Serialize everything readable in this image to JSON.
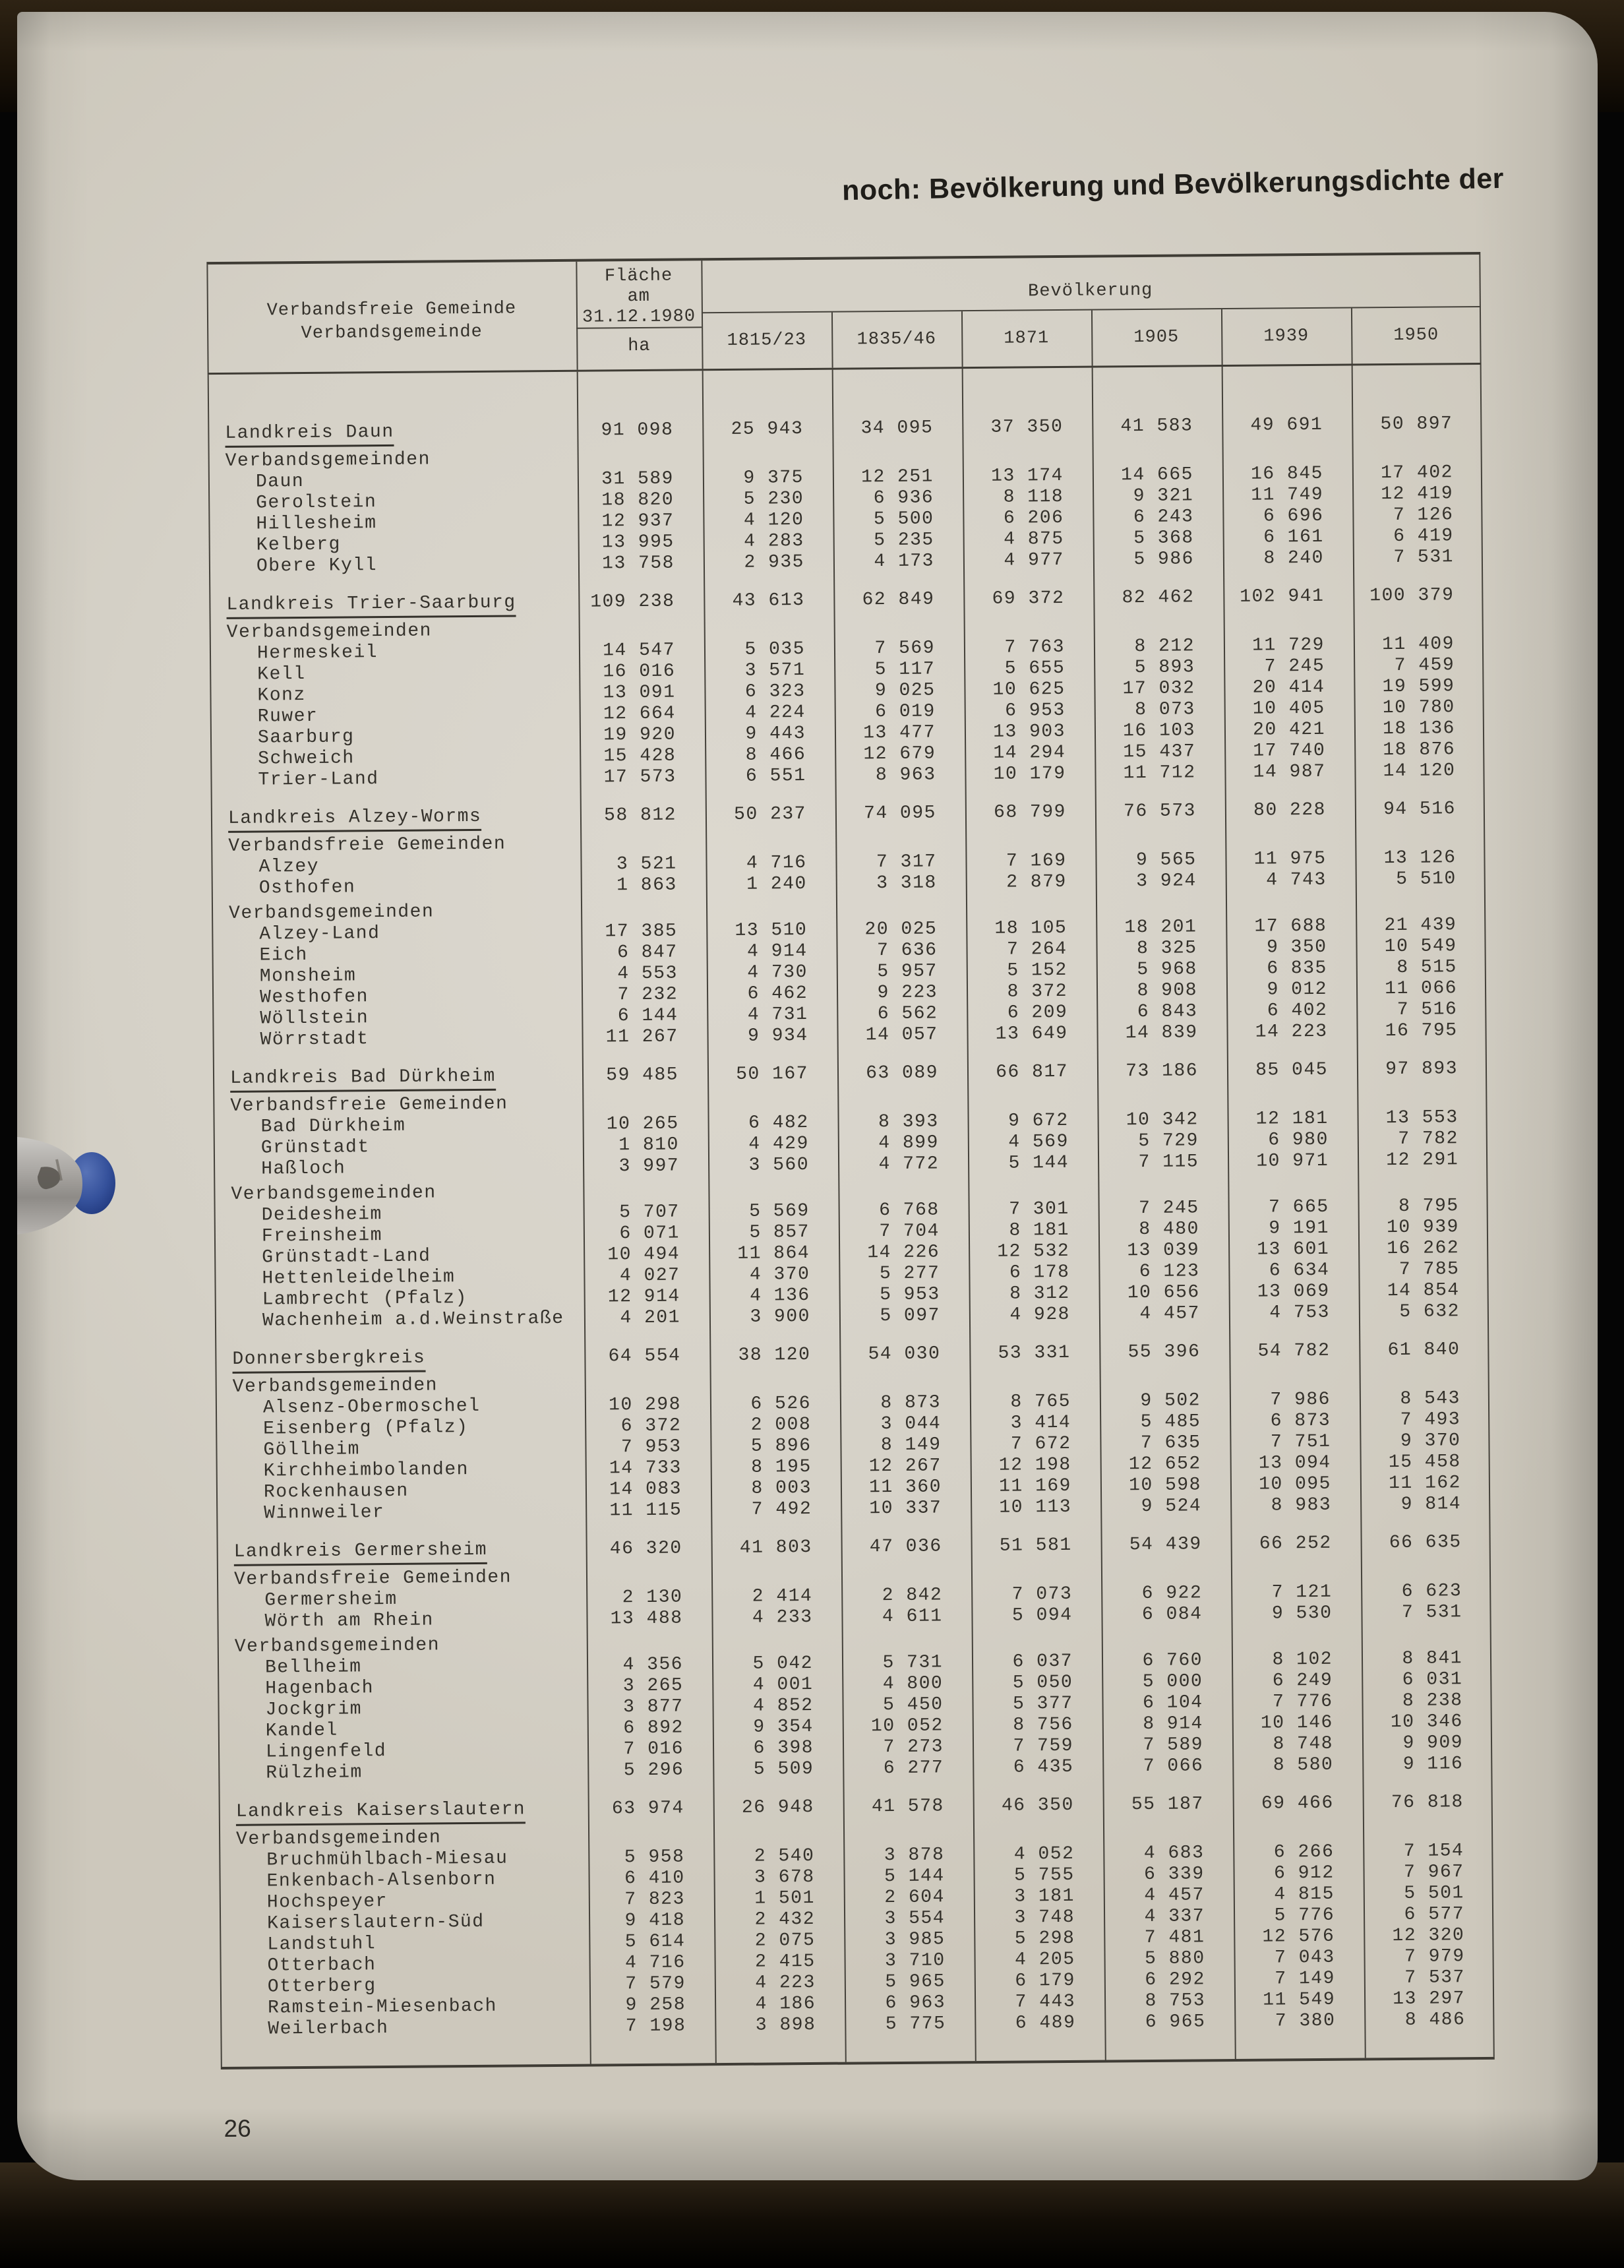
{
  "page": {
    "title": "noch: Bevölkerung und Bevölkerungsdichte der",
    "page_number": "26"
  },
  "colors": {
    "page_bg": "#d7d3c9",
    "ink": "#34312b",
    "rule": "#45423b",
    "pen_silver": "#a8a5a1",
    "pen_blue": "#35519b"
  },
  "table": {
    "header": {
      "col1_line1": "Verbandsfreie Gemeinde",
      "col1_line2": "Verbandsgemeinde",
      "area_line1": "Fläche",
      "area_line2": "am",
      "area_line3": "31.12.1980",
      "area_unit": "ha",
      "population": "Bevölkerung",
      "years": [
        "1815/23",
        "1835/46",
        "1871",
        "1905",
        "1939",
        "1950"
      ]
    },
    "groups": [
      {
        "title": "Landkreis Daun",
        "values": [
          "91 098",
          "25 943",
          "34 095",
          "37 350",
          "41 583",
          "49 691",
          "50 897"
        ],
        "sections": [
          {
            "label": "Verbandsgemeinden",
            "rows": [
              {
                "name": "Daun",
                "values": [
                  "31 589",
                  "9 375",
                  "12 251",
                  "13 174",
                  "14 665",
                  "16 845",
                  "17 402"
                ]
              },
              {
                "name": "Gerolstein",
                "values": [
                  "18 820",
                  "5 230",
                  "6 936",
                  "8 118",
                  "9 321",
                  "11 749",
                  "12 419"
                ]
              },
              {
                "name": "Hillesheim",
                "values": [
                  "12 937",
                  "4 120",
                  "5 500",
                  "6 206",
                  "6 243",
                  "6 696",
                  "7 126"
                ]
              },
              {
                "name": "Kelberg",
                "values": [
                  "13 995",
                  "4 283",
                  "5 235",
                  "4 875",
                  "5 368",
                  "6 161",
                  "6 419"
                ]
              },
              {
                "name": "Obere Kyll",
                "values": [
                  "13 758",
                  "2 935",
                  "4 173",
                  "4 977",
                  "5 986",
                  "8 240",
                  "7 531"
                ]
              }
            ]
          }
        ]
      },
      {
        "title": "Landkreis Trier-Saarburg",
        "values": [
          "109 238",
          "43 613",
          "62 849",
          "69 372",
          "82 462",
          "102 941",
          "100 379"
        ],
        "sections": [
          {
            "label": "Verbandsgemeinden",
            "rows": [
              {
                "name": "Hermeskeil",
                "values": [
                  "14 547",
                  "5 035",
                  "7 569",
                  "7 763",
                  "8 212",
                  "11 729",
                  "11 409"
                ]
              },
              {
                "name": "Kell",
                "values": [
                  "16 016",
                  "3 571",
                  "5 117",
                  "5 655",
                  "5 893",
                  "7 245",
                  "7 459"
                ]
              },
              {
                "name": "Konz",
                "values": [
                  "13 091",
                  "6 323",
                  "9 025",
                  "10 625",
                  "17 032",
                  "20 414",
                  "19 599"
                ]
              },
              {
                "name": "Ruwer",
                "values": [
                  "12 664",
                  "4 224",
                  "6 019",
                  "6 953",
                  "8 073",
                  "10 405",
                  "10 780"
                ]
              },
              {
                "name": "Saarburg",
                "values": [
                  "19 920",
                  "9 443",
                  "13 477",
                  "13 903",
                  "16 103",
                  "20 421",
                  "18 136"
                ]
              },
              {
                "name": "Schweich",
                "values": [
                  "15 428",
                  "8 466",
                  "12 679",
                  "14 294",
                  "15 437",
                  "17 740",
                  "18 876"
                ]
              },
              {
                "name": "Trier-Land",
                "values": [
                  "17 573",
                  "6 551",
                  "8 963",
                  "10 179",
                  "11 712",
                  "14 987",
                  "14 120"
                ]
              }
            ]
          }
        ]
      },
      {
        "title": "Landkreis Alzey-Worms",
        "values": [
          "58 812",
          "50 237",
          "74 095",
          "68 799",
          "76 573",
          "80 228",
          "94 516"
        ],
        "sections": [
          {
            "label": "Verbandsfreie Gemeinden",
            "rows": [
              {
                "name": "Alzey",
                "values": [
                  "3 521",
                  "4 716",
                  "7 317",
                  "7 169",
                  "9 565",
                  "11 975",
                  "13 126"
                ]
              },
              {
                "name": "Osthofen",
                "values": [
                  "1 863",
                  "1 240",
                  "3 318",
                  "2 879",
                  "3 924",
                  "4 743",
                  "5 510"
                ]
              }
            ]
          },
          {
            "label": "Verbandsgemeinden",
            "rows": [
              {
                "name": "Alzey-Land",
                "values": [
                  "17 385",
                  "13 510",
                  "20 025",
                  "18 105",
                  "18 201",
                  "17 688",
                  "21 439"
                ]
              },
              {
                "name": "Eich",
                "values": [
                  "6 847",
                  "4 914",
                  "7 636",
                  "7 264",
                  "8 325",
                  "9 350",
                  "10 549"
                ]
              },
              {
                "name": "Monsheim",
                "values": [
                  "4 553",
                  "4 730",
                  "5 957",
                  "5 152",
                  "5 968",
                  "6 835",
                  "8 515"
                ]
              },
              {
                "name": "Westhofen",
                "values": [
                  "7 232",
                  "6 462",
                  "9 223",
                  "8 372",
                  "8 908",
                  "9 012",
                  "11 066"
                ]
              },
              {
                "name": "Wöllstein",
                "values": [
                  "6 144",
                  "4 731",
                  "6 562",
                  "6 209",
                  "6 843",
                  "6 402",
                  "7 516"
                ]
              },
              {
                "name": "Wörrstadt",
                "values": [
                  "11 267",
                  "9 934",
                  "14 057",
                  "13 649",
                  "14 839",
                  "14 223",
                  "16 795"
                ]
              }
            ]
          }
        ]
      },
      {
        "title": "Landkreis Bad Dürkheim",
        "values": [
          "59 485",
          "50 167",
          "63 089",
          "66 817",
          "73 186",
          "85 045",
          "97 893"
        ],
        "sections": [
          {
            "label": "Verbandsfreie Gemeinden",
            "rows": [
              {
                "name": "Bad Dürkheim",
                "values": [
                  "10 265",
                  "6 482",
                  "8 393",
                  "9 672",
                  "10 342",
                  "12 181",
                  "13 553"
                ]
              },
              {
                "name": "Grünstadt",
                "values": [
                  "1 810",
                  "4 429",
                  "4 899",
                  "4 569",
                  "5 729",
                  "6 980",
                  "7 782"
                ]
              },
              {
                "name": "Haßloch",
                "values": [
                  "3 997",
                  "3 560",
                  "4 772",
                  "5 144",
                  "7 115",
                  "10 971",
                  "12 291"
                ]
              }
            ]
          },
          {
            "label": "Verbandsgemeinden",
            "rows": [
              {
                "name": "Deidesheim",
                "values": [
                  "5 707",
                  "5 569",
                  "6 768",
                  "7 301",
                  "7 245",
                  "7 665",
                  "8 795"
                ]
              },
              {
                "name": "Freinsheim",
                "values": [
                  "6 071",
                  "5 857",
                  "7 704",
                  "8 181",
                  "8 480",
                  "9 191",
                  "10 939"
                ]
              },
              {
                "name": "Grünstadt-Land",
                "values": [
                  "10 494",
                  "11 864",
                  "14 226",
                  "12 532",
                  "13 039",
                  "13 601",
                  "16 262"
                ]
              },
              {
                "name": "Hettenleidelheim",
                "values": [
                  "4 027",
                  "4 370",
                  "5 277",
                  "6 178",
                  "6 123",
                  "6 634",
                  "7 785"
                ]
              },
              {
                "name": "Lambrecht (Pfalz)",
                "values": [
                  "12 914",
                  "4 136",
                  "5 953",
                  "8 312",
                  "10 656",
                  "13 069",
                  "14 854"
                ]
              },
              {
                "name": "Wachenheim a.d.Weinstraße",
                "values": [
                  "4 201",
                  "3 900",
                  "5 097",
                  "4 928",
                  "4 457",
                  "4 753",
                  "5 632"
                ]
              }
            ]
          }
        ]
      },
      {
        "title": "Donnersbergkreis",
        "values": [
          "64 554",
          "38 120",
          "54 030",
          "53 331",
          "55 396",
          "54 782",
          "61 840"
        ],
        "sections": [
          {
            "label": "Verbandsgemeinden",
            "rows": [
              {
                "name": "Alsenz-Obermoschel",
                "values": [
                  "10 298",
                  "6 526",
                  "8 873",
                  "8 765",
                  "9 502",
                  "7 986",
                  "8 543"
                ]
              },
              {
                "name": "Eisenberg (Pfalz)",
                "values": [
                  "6 372",
                  "2 008",
                  "3 044",
                  "3 414",
                  "5 485",
                  "6 873",
                  "7 493"
                ]
              },
              {
                "name": "Göllheim",
                "values": [
                  "7 953",
                  "5 896",
                  "8 149",
                  "7 672",
                  "7 635",
                  "7 751",
                  "9 370"
                ]
              },
              {
                "name": "Kirchheimbolanden",
                "values": [
                  "14 733",
                  "8 195",
                  "12 267",
                  "12 198",
                  "12 652",
                  "13 094",
                  "15 458"
                ]
              },
              {
                "name": "Rockenhausen",
                "values": [
                  "14 083",
                  "8 003",
                  "11 360",
                  "11 169",
                  "10 598",
                  "10 095",
                  "11 162"
                ]
              },
              {
                "name": "Winnweiler",
                "values": [
                  "11 115",
                  "7 492",
                  "10 337",
                  "10 113",
                  "9 524",
                  "8 983",
                  "9 814"
                ]
              }
            ]
          }
        ]
      },
      {
        "title": "Landkreis Germersheim",
        "values": [
          "46 320",
          "41 803",
          "47 036",
          "51 581",
          "54 439",
          "66 252",
          "66 635"
        ],
        "sections": [
          {
            "label": "Verbandsfreie Gemeinden",
            "rows": [
              {
                "name": "Germersheim",
                "values": [
                  "2 130",
                  "2 414",
                  "2 842",
                  "7 073",
                  "6 922",
                  "7 121",
                  "6 623"
                ]
              },
              {
                "name": "Wörth am Rhein",
                "values": [
                  "13 488",
                  "4 233",
                  "4 611",
                  "5 094",
                  "6 084",
                  "9 530",
                  "7 531"
                ]
              }
            ]
          },
          {
            "label": "Verbandsgemeinden",
            "rows": [
              {
                "name": "Bellheim",
                "values": [
                  "4 356",
                  "5 042",
                  "5 731",
                  "6 037",
                  "6 760",
                  "8 102",
                  "8 841"
                ]
              },
              {
                "name": "Hagenbach",
                "values": [
                  "3 265",
                  "4 001",
                  "4 800",
                  "5 050",
                  "5 000",
                  "6 249",
                  "6 031"
                ]
              },
              {
                "name": "Jockgrim",
                "values": [
                  "3 877",
                  "4 852",
                  "5 450",
                  "5 377",
                  "6 104",
                  "7 776",
                  "8 238"
                ]
              },
              {
                "name": "Kandel",
                "values": [
                  "6 892",
                  "9 354",
                  "10 052",
                  "8 756",
                  "8 914",
                  "10 146",
                  "10 346"
                ]
              },
              {
                "name": "Lingenfeld",
                "values": [
                  "7 016",
                  "6 398",
                  "7 273",
                  "7 759",
                  "7 589",
                  "8 748",
                  "9 909"
                ]
              },
              {
                "name": "Rülzheim",
                "values": [
                  "5 296",
                  "5 509",
                  "6 277",
                  "6 435",
                  "7 066",
                  "8 580",
                  "9 116"
                ]
              }
            ]
          }
        ]
      },
      {
        "title": "Landkreis Kaiserslautern",
        "values": [
          "63 974",
          "26 948",
          "41 578",
          "46 350",
          "55 187",
          "69 466",
          "76 818"
        ],
        "sections": [
          {
            "label": "Verbandsgemeinden",
            "rows": [
              {
                "name": "Bruchmühlbach-Miesau",
                "values": [
                  "5 958",
                  "2 540",
                  "3 878",
                  "4 052",
                  "4 683",
                  "6 266",
                  "7 154"
                ]
              },
              {
                "name": "Enkenbach-Alsenborn",
                "values": [
                  "6 410",
                  "3 678",
                  "5 144",
                  "5 755",
                  "6 339",
                  "6 912",
                  "7 967"
                ]
              },
              {
                "name": "Hochspeyer",
                "values": [
                  "7 823",
                  "1 501",
                  "2 604",
                  "3 181",
                  "4 457",
                  "4 815",
                  "5 501"
                ]
              },
              {
                "name": "Kaiserslautern-Süd",
                "values": [
                  "9 418",
                  "2 432",
                  "3 554",
                  "3 748",
                  "4 337",
                  "5 776",
                  "6 577"
                ]
              },
              {
                "name": "Landstuhl",
                "values": [
                  "5 614",
                  "2 075",
                  "3 985",
                  "5 298",
                  "7 481",
                  "12 576",
                  "12 320"
                ]
              },
              {
                "name": "Otterbach",
                "values": [
                  "4 716",
                  "2 415",
                  "3 710",
                  "4 205",
                  "5 880",
                  "7 043",
                  "7 979"
                ]
              },
              {
                "name": "Otterberg",
                "values": [
                  "7 579",
                  "4 223",
                  "5 965",
                  "6 179",
                  "6 292",
                  "7 149",
                  "7 537"
                ]
              },
              {
                "name": "Ramstein-Miesenbach",
                "values": [
                  "9 258",
                  "4 186",
                  "6 963",
                  "7 443",
                  "8 753",
                  "11 549",
                  "13 297"
                ]
              },
              {
                "name": "Weilerbach",
                "values": [
                  "7 198",
                  "3 898",
                  "5 775",
                  "6 489",
                  "6 965",
                  "7 380",
                  "8 486"
                ]
              }
            ]
          }
        ]
      }
    ]
  }
}
